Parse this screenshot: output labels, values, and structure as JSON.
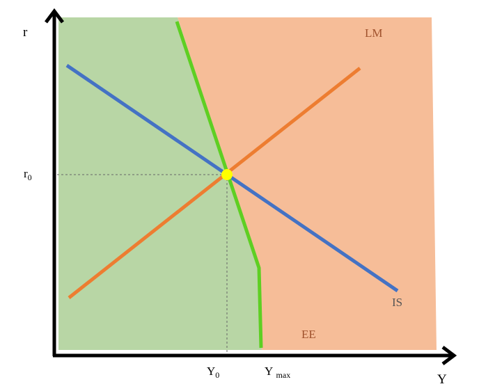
{
  "axes": {
    "y_label": "r",
    "x_label": "Y"
  },
  "ticks": {
    "r0": {
      "main": "r",
      "sub": "0"
    },
    "y0": {
      "main": "Y",
      "sub": "0"
    },
    "ymax": {
      "main": "Y",
      "sub": "max"
    }
  },
  "curves": {
    "lm": {
      "label": "LM",
      "color": "#ed7d31"
    },
    "is": {
      "label": "IS",
      "color": "#4472c4"
    },
    "ee": {
      "label": "EE",
      "color": "#5ecf23"
    }
  },
  "regions": {
    "left_color": "#b8d6a5",
    "right_color": "#f6bd98"
  },
  "equilibrium_point_color": "#ffff00"
}
